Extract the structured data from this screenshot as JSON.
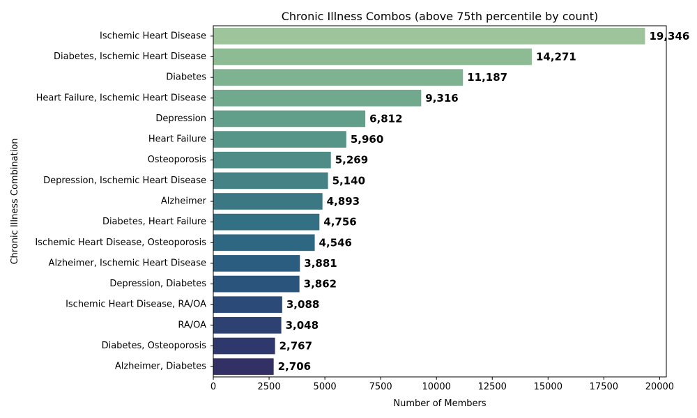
{
  "chart_data": {
    "type": "bar",
    "orientation": "horizontal",
    "title": "Chronic Illness Combos (above 75th percentile by count)",
    "xlabel": "Number of Members",
    "ylabel": "Chronic Illness Combination",
    "xlim": [
      0,
      20300
    ],
    "xticks": [
      0,
      2500,
      5000,
      7500,
      10000,
      12500,
      15000,
      17500,
      20000
    ],
    "grid": false,
    "categories": [
      "Ischemic Heart Disease",
      "Diabetes, Ischemic Heart Disease",
      "Diabetes",
      "Heart Failure, Ischemic Heart Disease",
      "Depression",
      "Heart Failure",
      "Osteoporosis",
      "Depression, Ischemic Heart Disease",
      "Alzheimer",
      "Diabetes, Heart Failure",
      "Ischemic Heart Disease, Osteoporosis",
      "Alzheimer, Ischemic Heart Disease",
      "Depression, Diabetes",
      "Ischemic Heart Disease, RA/OA",
      "RA/OA",
      "Diabetes, Osteoporosis",
      "Alzheimer, Diabetes"
    ],
    "values": [
      19346,
      14271,
      11187,
      9316,
      6812,
      5960,
      5269,
      5140,
      4893,
      4756,
      4546,
      3881,
      3862,
      3088,
      3048,
      2767,
      2706
    ],
    "value_labels": [
      "19,346",
      "14,271",
      "11,187",
      "9,316",
      "6,812",
      "5,960",
      "5,269",
      "5,140",
      "4,893",
      "4,756",
      "4,546",
      "3,881",
      "3,862",
      "3,088",
      "3,048",
      "2,767",
      "2,706"
    ],
    "colors": [
      "#9dc49a",
      "#8dbb94",
      "#7eb291",
      "#70a98e",
      "#629f8b",
      "#579589",
      "#4d8c87",
      "#448285",
      "#3b7884",
      "#347083",
      "#2e6782",
      "#2b5d80",
      "#2a547c",
      "#2c4a78",
      "#2d4172",
      "#2f386c",
      "#323065"
    ]
  }
}
